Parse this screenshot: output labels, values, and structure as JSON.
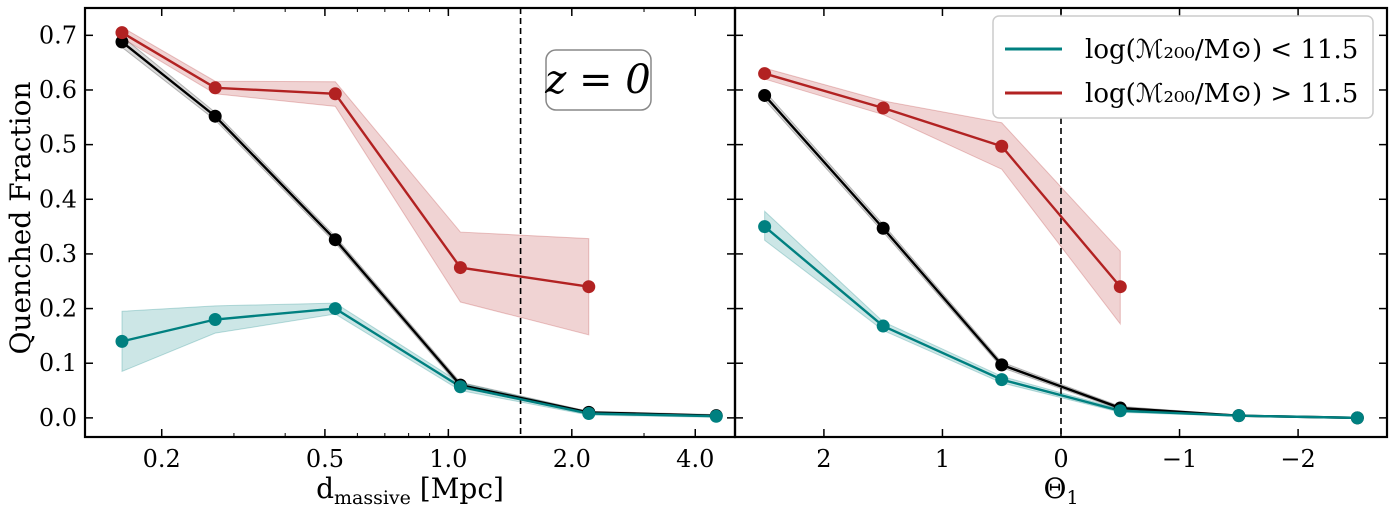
{
  "colors": {
    "low": "#008080",
    "high": "#b22222",
    "all": "#000000"
  },
  "chart_data": [
    {
      "type": "line",
      "panel": "left",
      "xscale": "log",
      "xlim": [
        0.13,
        5.0
      ],
      "ylim": [
        -0.035,
        0.75
      ],
      "xticks": [
        0.2,
        0.5,
        1.0,
        2.0,
        4.0
      ],
      "xtick_labels": [
        "0.2",
        "0.5",
        "1.0",
        "2.0",
        "4.0"
      ],
      "yticks": [
        0.0,
        0.1,
        0.2,
        0.3,
        0.4,
        0.5,
        0.6,
        0.7
      ],
      "ytick_labels": [
        "0.0",
        "0.1",
        "0.2",
        "0.3",
        "0.4",
        "0.5",
        "0.6",
        "0.7"
      ],
      "xlabel_main": "d",
      "xlabel_sub": "massive",
      "xlabel_unit": " [Mpc]",
      "ylabel": "Quenched Fraction",
      "vline": 1.5,
      "annotation": "z = 0",
      "series": [
        {
          "name": "all",
          "color_key": "all",
          "x": [
            0.16,
            0.27,
            0.53,
            1.07,
            2.2,
            4.5
          ],
          "y": [
            0.688,
            0.552,
            0.326,
            0.06,
            0.01,
            0.004
          ],
          "lo": [
            0.678,
            0.545,
            0.32,
            0.055,
            0.008,
            0.002
          ],
          "hi": [
            0.698,
            0.559,
            0.332,
            0.065,
            0.012,
            0.006
          ]
        },
        {
          "name": "low",
          "color_key": "low",
          "x": [
            0.16,
            0.27,
            0.53,
            1.07,
            2.2,
            4.5
          ],
          "y": [
            0.14,
            0.18,
            0.2,
            0.057,
            0.008,
            0.003
          ],
          "lo": [
            0.085,
            0.155,
            0.19,
            0.05,
            0.005,
            0.001
          ],
          "hi": [
            0.195,
            0.205,
            0.21,
            0.064,
            0.011,
            0.005
          ]
        },
        {
          "name": "high",
          "color_key": "high",
          "x": [
            0.16,
            0.27,
            0.53,
            1.07,
            2.2
          ],
          "y": [
            0.705,
            0.604,
            0.593,
            0.275,
            0.24
          ],
          "lo": [
            0.695,
            0.593,
            0.57,
            0.212,
            0.152
          ],
          "hi": [
            0.715,
            0.616,
            0.615,
            0.34,
            0.328
          ]
        }
      ]
    },
    {
      "type": "line",
      "panel": "right",
      "xscale": "linear",
      "xlim": [
        2.75,
        -2.75
      ],
      "ylim": [
        -0.035,
        0.75
      ],
      "xticks": [
        2,
        1,
        0,
        -1,
        -2
      ],
      "xtick_labels": [
        "2",
        "1",
        "0",
        "−1",
        "−2"
      ],
      "xlabel_main": "Θ",
      "xlabel_sub": "1",
      "vline": 0,
      "legend": {
        "position": "top-right",
        "entries": [
          {
            "color_key": "low",
            "label": "log(ℳ₂₀₀/M⊙) < 11.5"
          },
          {
            "color_key": "high",
            "label": "log(ℳ₂₀₀/M⊙) > 11.5"
          }
        ]
      },
      "series": [
        {
          "name": "all",
          "color_key": "all",
          "x": [
            2.5,
            1.5,
            0.5,
            -0.5,
            -1.5,
            -2.5
          ],
          "y": [
            0.59,
            0.347,
            0.097,
            0.018,
            0.004,
            0.0
          ],
          "lo": [
            0.582,
            0.34,
            0.092,
            0.015,
            0.003,
            0.0
          ],
          "hi": [
            0.598,
            0.354,
            0.102,
            0.021,
            0.005,
            0.001
          ]
        },
        {
          "name": "low",
          "color_key": "low",
          "x": [
            2.5,
            1.5,
            0.5,
            -0.5,
            -1.5,
            -2.5
          ],
          "y": [
            0.35,
            0.168,
            0.07,
            0.013,
            0.004,
            0.0
          ],
          "lo": [
            0.325,
            0.16,
            0.064,
            0.01,
            0.003,
            0.0
          ],
          "hi": [
            0.378,
            0.176,
            0.076,
            0.016,
            0.005,
            0.001
          ]
        },
        {
          "name": "high",
          "color_key": "high",
          "x": [
            2.5,
            1.5,
            0.5,
            -0.5
          ],
          "y": [
            0.63,
            0.567,
            0.497,
            0.24
          ],
          "lo": [
            0.62,
            0.555,
            0.455,
            0.172
          ],
          "hi": [
            0.64,
            0.58,
            0.54,
            0.305
          ]
        }
      ]
    }
  ]
}
